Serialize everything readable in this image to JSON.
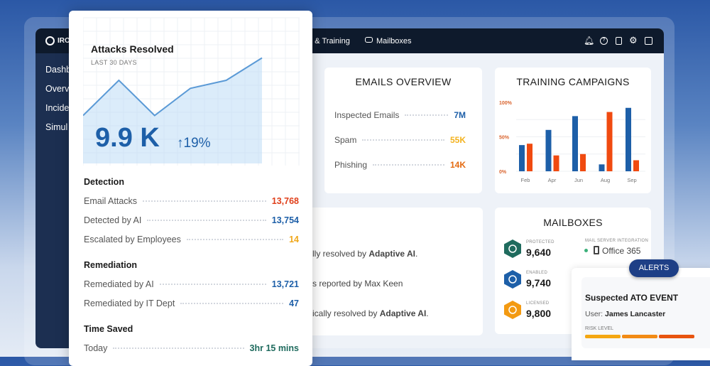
{
  "nav": {
    "brand": "IRONSCALES",
    "items": [
      {
        "label": "Simulation & Training",
        "visible": "on & Training"
      },
      {
        "label": "Mailboxes",
        "icon": "inbox-icon"
      }
    ],
    "icons": [
      "bell-icon",
      "help-icon",
      "report-icon",
      "gear-icon",
      "user-icon"
    ]
  },
  "sidebar": {
    "items": [
      "Dashb",
      "Overv",
      "Incide",
      "Simul"
    ]
  },
  "attacks": {
    "title": "Attacks Resolved",
    "subtitle": "LAST 30 DAYS",
    "value": "9.9 K",
    "change": "19%",
    "trend": [
      0.3,
      0.52,
      0.3,
      0.47,
      0.52,
      0.66
    ],
    "sections": [
      {
        "title": "Detection",
        "rows": [
          {
            "label": "Email Attacks",
            "value": "13,768",
            "color": "#e0401b"
          },
          {
            "label": "Detected by AI",
            "value": "13,754",
            "color": "#1d5fa8"
          },
          {
            "label": "Escalated by Employees",
            "value": "14",
            "color": "#f0a81c"
          }
        ]
      },
      {
        "title": "Remediation",
        "rows": [
          {
            "label": "Remediated by AI",
            "value": "13,721",
            "color": "#1d5fa8"
          },
          {
            "label": "Remediated by IT Dept",
            "value": "47",
            "color": "#1d5fa8"
          }
        ]
      },
      {
        "title": "Time Saved",
        "rows": [
          {
            "label": "Today",
            "value": "3hr 15 mins",
            "color": "#1f6b5e"
          }
        ]
      }
    ]
  },
  "emails": {
    "title": "EMAILS OVERVIEW",
    "rows": [
      {
        "label": "Inspected Emails",
        "value": "7M",
        "color": "#1d5fa8"
      },
      {
        "label": "Spam",
        "value": "55K",
        "color": "#f3b21e"
      },
      {
        "label": "Phishing",
        "value": "14K",
        "color": "#e46a10"
      }
    ]
  },
  "chart_data": {
    "type": "bar",
    "title": "TRAINING CAMPAIGNS",
    "categories": [
      "Feb",
      "Apr",
      "Jun",
      "Aug",
      "Sep"
    ],
    "series": [
      {
        "values": [
          38,
          60,
          80,
          10,
          92
        ],
        "color": "#1d5fa8"
      },
      {
        "values": [
          40,
          23,
          25,
          86,
          16
        ],
        "color": "#f04a10"
      }
    ],
    "yticks": [
      "0%",
      "50%",
      "100%"
    ],
    "ylim": [
      0,
      100
    ],
    "grid": true
  },
  "activity": {
    "lines": [
      {
        "text": "lly resolved by ",
        "bold": "Adaptive AI",
        "end": "."
      },
      {
        "text": "s reported by Max Keen",
        "bold": "",
        "end": ""
      },
      {
        "text": "ically resolved by ",
        "bold": "Adaptive AI",
        "end": "."
      }
    ]
  },
  "mailboxes": {
    "title": "MAILBOXES",
    "stats": [
      {
        "label": "PROTECTED",
        "value": "9,640",
        "color": "#1f6b5e"
      },
      {
        "label": "ENABLED",
        "value": "9,740",
        "color": "#1d5fa8"
      },
      {
        "label": "LICENSED",
        "value": "9,800",
        "color": "#f39a12"
      }
    ],
    "integration_label": "MAIL SERVER INTEGRATION",
    "integration": "Office 365",
    "status_color": "#3bb07a"
  },
  "alerts": {
    "badge": "ALERTS",
    "title": "Suspected ATO EVENT",
    "user_label": "User: ",
    "user": "James Lancaster",
    "risk_label": "RISK LEVEL"
  }
}
